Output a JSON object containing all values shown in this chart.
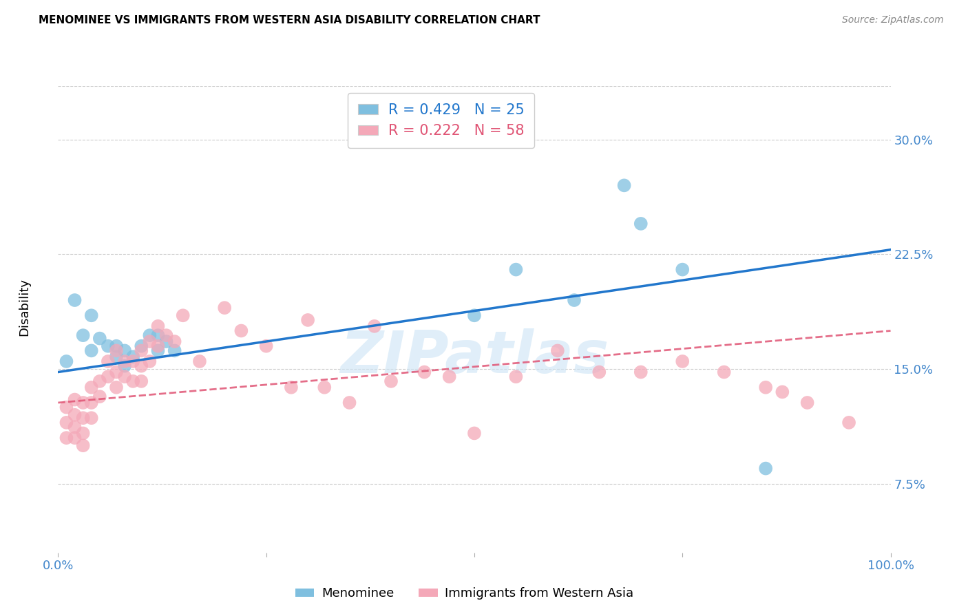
{
  "title": "MENOMINEE VS IMMIGRANTS FROM WESTERN ASIA DISABILITY CORRELATION CHART",
  "source": "Source: ZipAtlas.com",
  "ylabel": "Disability",
  "watermark": "ZIPatlas",
  "xlim": [
    0,
    1.0
  ],
  "ylim": [
    0.03,
    0.335
  ],
  "yticks": [
    0.075,
    0.15,
    0.225,
    0.3
  ],
  "ytick_labels": [
    "7.5%",
    "15.0%",
    "22.5%",
    "30.0%"
  ],
  "xticks": [
    0.0,
    0.25,
    0.5,
    0.75,
    1.0
  ],
  "xtick_labels": [
    "0.0%",
    "",
    "",
    "",
    "100.0%"
  ],
  "grid_color": "#cccccc",
  "blue_color": "#7fbfdf",
  "pink_color": "#f4a8b8",
  "blue_line_color": "#2277cc",
  "pink_line_color": "#e05575",
  "tick_label_color": "#4488cc",
  "menominee_label": "Menominee",
  "immigrants_label": "Immigrants from Western Asia",
  "blue_scatter_x": [
    0.01,
    0.02,
    0.03,
    0.04,
    0.04,
    0.05,
    0.06,
    0.07,
    0.07,
    0.08,
    0.08,
    0.09,
    0.1,
    0.11,
    0.12,
    0.12,
    0.13,
    0.14,
    0.5,
    0.55,
    0.62,
    0.68,
    0.7,
    0.75,
    0.85
  ],
  "blue_scatter_y": [
    0.155,
    0.195,
    0.172,
    0.185,
    0.162,
    0.17,
    0.165,
    0.165,
    0.158,
    0.162,
    0.152,
    0.158,
    0.165,
    0.172,
    0.172,
    0.162,
    0.168,
    0.162,
    0.185,
    0.215,
    0.195,
    0.27,
    0.245,
    0.215,
    0.085
  ],
  "pink_scatter_x": [
    0.01,
    0.01,
    0.01,
    0.02,
    0.02,
    0.02,
    0.02,
    0.03,
    0.03,
    0.03,
    0.03,
    0.04,
    0.04,
    0.04,
    0.05,
    0.05,
    0.06,
    0.06,
    0.07,
    0.07,
    0.07,
    0.08,
    0.08,
    0.09,
    0.09,
    0.1,
    0.1,
    0.1,
    0.11,
    0.11,
    0.12,
    0.12,
    0.13,
    0.14,
    0.15,
    0.17,
    0.2,
    0.22,
    0.25,
    0.28,
    0.3,
    0.32,
    0.35,
    0.38,
    0.4,
    0.44,
    0.47,
    0.5,
    0.55,
    0.6,
    0.65,
    0.7,
    0.75,
    0.8,
    0.85,
    0.87,
    0.9,
    0.95
  ],
  "pink_scatter_y": [
    0.125,
    0.115,
    0.105,
    0.13,
    0.12,
    0.112,
    0.105,
    0.128,
    0.118,
    0.108,
    0.1,
    0.138,
    0.128,
    0.118,
    0.142,
    0.132,
    0.155,
    0.145,
    0.162,
    0.148,
    0.138,
    0.155,
    0.145,
    0.155,
    0.142,
    0.162,
    0.152,
    0.142,
    0.168,
    0.155,
    0.178,
    0.165,
    0.172,
    0.168,
    0.185,
    0.155,
    0.19,
    0.175,
    0.165,
    0.138,
    0.182,
    0.138,
    0.128,
    0.178,
    0.142,
    0.148,
    0.145,
    0.108,
    0.145,
    0.162,
    0.148,
    0.148,
    0.155,
    0.148,
    0.138,
    0.135,
    0.128,
    0.115
  ],
  "blue_line_x0": 0.0,
  "blue_line_y0": 0.148,
  "blue_line_x1": 1.0,
  "blue_line_y1": 0.228,
  "pink_line_x0": 0.0,
  "pink_line_y0": 0.128,
  "pink_line_x1": 1.0,
  "pink_line_y1": 0.175
}
